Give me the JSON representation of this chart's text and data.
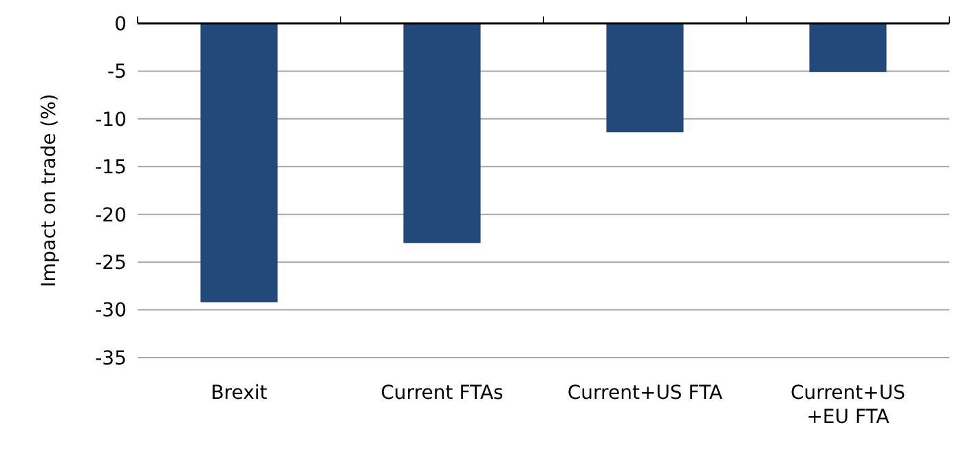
{
  "chart_data": {
    "type": "bar",
    "ylabel": "Impact on trade (%)",
    "categories": [
      "Brexit",
      "Current FTAs",
      "Current+US FTA",
      "Current+US +EU FTA"
    ],
    "values": [
      -29.2,
      -23.0,
      -11.4,
      -5.1
    ],
    "color": "#23487a",
    "ylim": [
      -35,
      0
    ],
    "yticks": [
      -35,
      -30,
      -25,
      -20,
      -15,
      -10,
      -5,
      0
    ],
    "grid": "y"
  }
}
